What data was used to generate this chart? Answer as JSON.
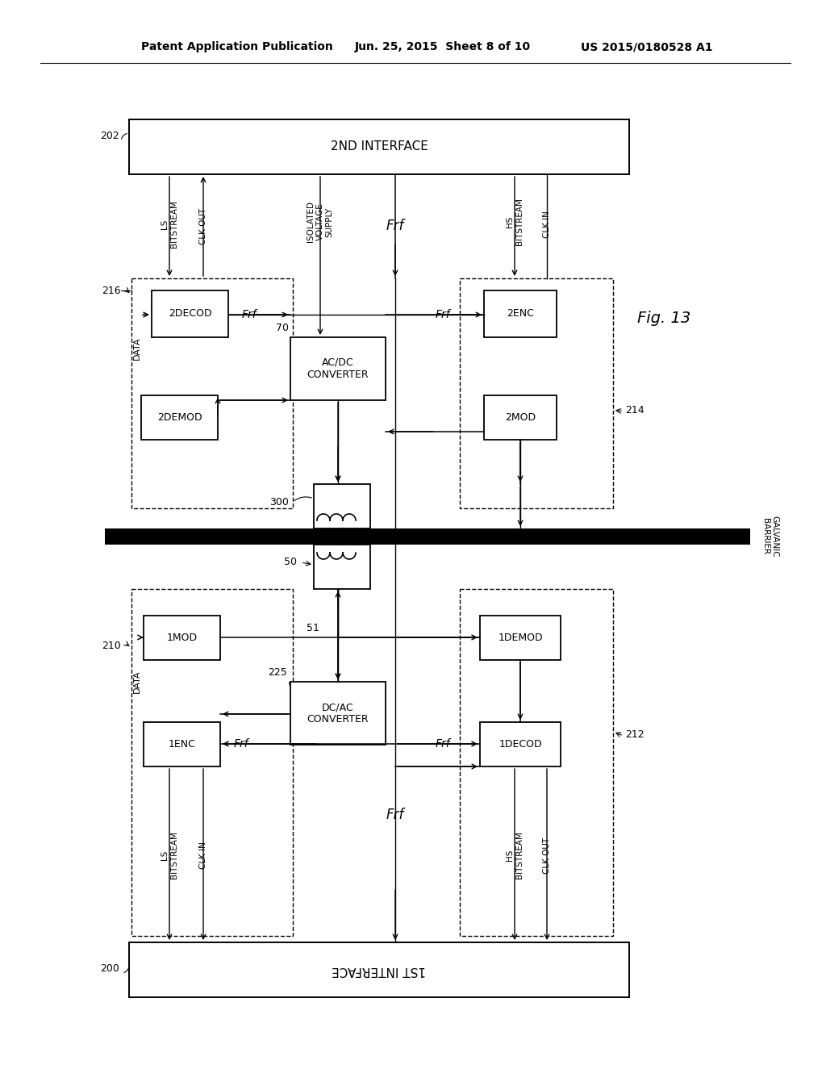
{
  "bg_color": "#ffffff",
  "header_text1": "Patent Application Publication",
  "header_text2": "Jun. 25, 2015  Sheet 8 of 10",
  "header_text3": "US 2015/0180528 A1"
}
